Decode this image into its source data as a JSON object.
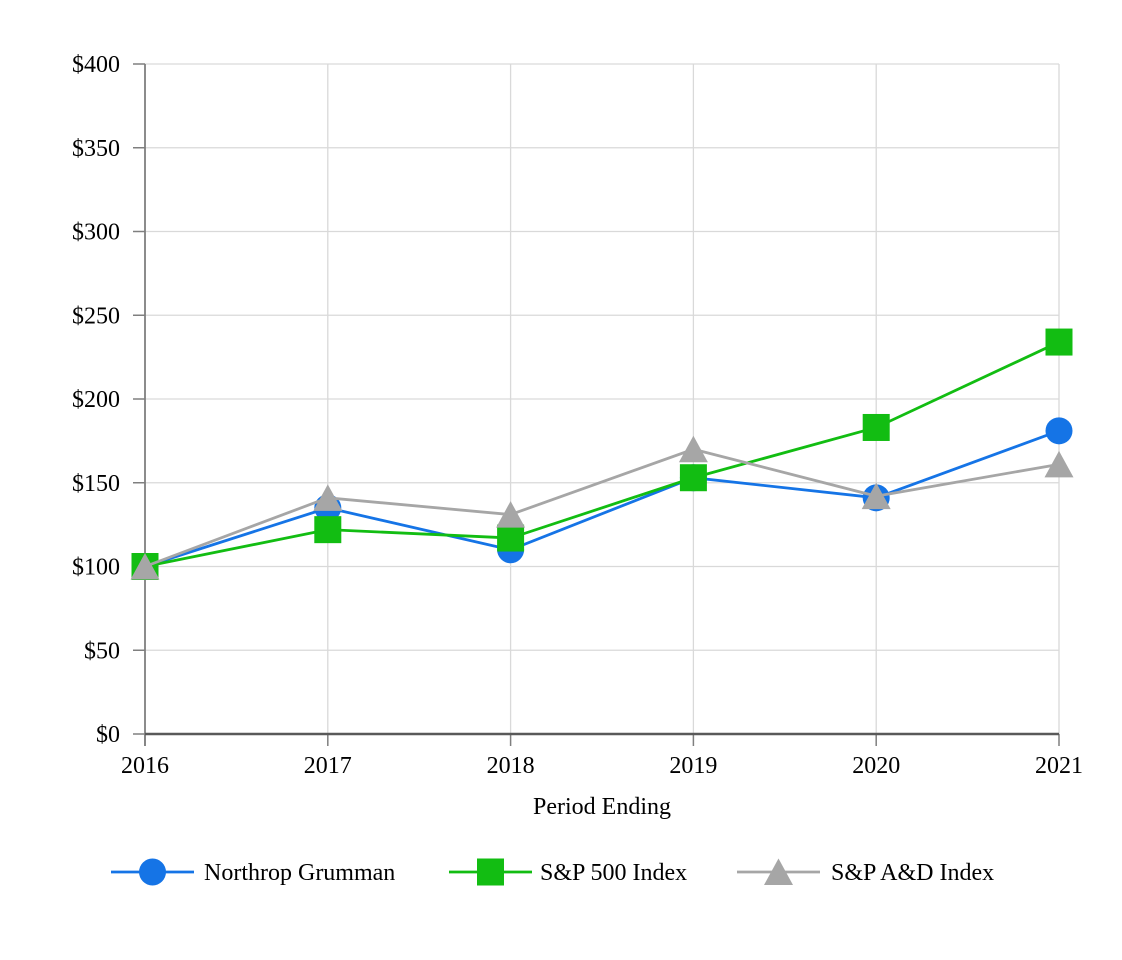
{
  "page": {
    "background": "#ffffff"
  },
  "chart_data": {
    "type": "line",
    "categories": [
      "2016",
      "2017",
      "2018",
      "2019",
      "2020",
      "2021"
    ],
    "xlabel": "Period Ending",
    "ylabel": "",
    "ylim": [
      0,
      400
    ],
    "y_tick_step": 50,
    "y_tick_labels": [
      "$0",
      "$50",
      "$100",
      "$150",
      "$200",
      "$250",
      "$300",
      "$350",
      "$400"
    ],
    "grid": true,
    "legend_position": "bottom",
    "series": [
      {
        "name": "Northrop Grumman",
        "marker": "circle",
        "color": "#1574e6",
        "values": [
          100,
          135,
          110,
          153,
          141,
          181
        ]
      },
      {
        "name": "S&P 500 Index",
        "marker": "square",
        "color": "#12bd12",
        "values": [
          100,
          122,
          117,
          153,
          183,
          234
        ]
      },
      {
        "name": "S&P A&D Index",
        "marker": "triangle",
        "color": "#a6a6a6",
        "values": [
          100,
          141,
          131,
          170,
          142,
          161
        ]
      }
    ],
    "colors": {
      "gridline": "#d9d9d9",
      "x_axis": "#595959",
      "y_axis": "#7f7f7f",
      "tick": "#7f7f7f",
      "text": "#000000"
    }
  }
}
